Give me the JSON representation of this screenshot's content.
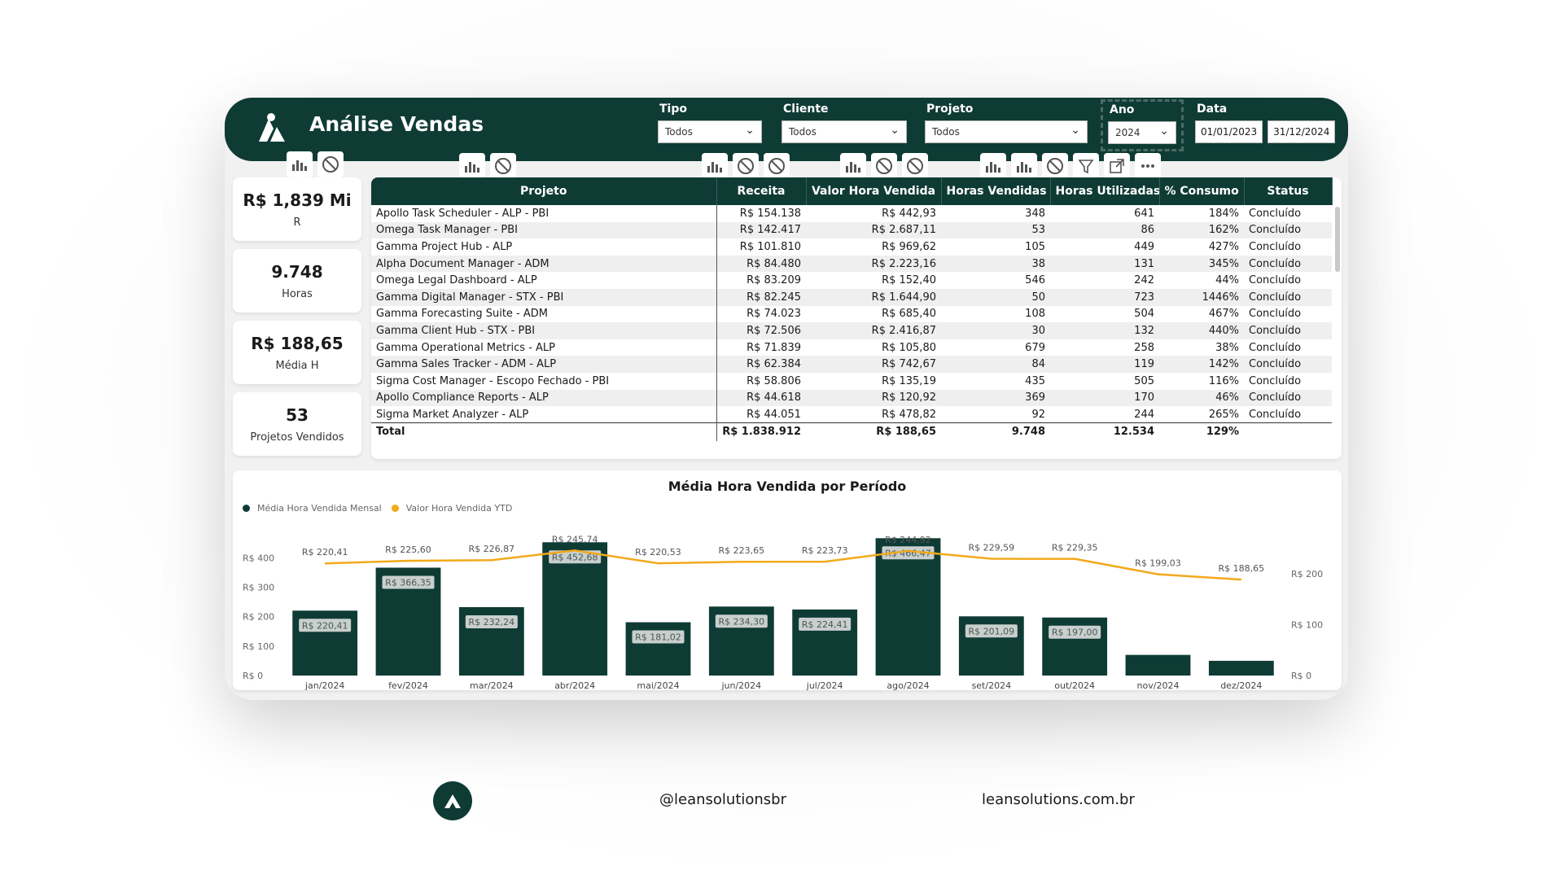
{
  "header": {
    "title": "Análise Vendas",
    "filters": [
      {
        "label": "Tipo",
        "value": "Todos"
      },
      {
        "label": "Cliente",
        "value": "Todos"
      },
      {
        "label": "Projeto",
        "value": "Todos"
      }
    ],
    "ano": {
      "label": "Ano",
      "value": "2024"
    },
    "data": {
      "label": "Data",
      "start": "01/01/2023",
      "end": "31/12/2024"
    }
  },
  "kpis": [
    {
      "value": "R$ 1,839 Mi",
      "label": "R"
    },
    {
      "value": "9.748",
      "label": "Horas"
    },
    {
      "value": "R$ 188,65",
      "label": "Média H"
    },
    {
      "value": "53",
      "label": "Projetos Vendidos"
    }
  ],
  "table": {
    "headers": [
      "Projeto",
      "Receita",
      "Valor Hora Vendida",
      "Horas Vendidas",
      "Horas Utilizadas",
      "% Consumo",
      "Status"
    ],
    "rows": [
      [
        "Apollo Task Scheduler - ALP - PBI",
        "R$ 154.138",
        "R$ 442,93",
        "348",
        "641",
        "184%",
        "Concluído"
      ],
      [
        "Omega Task Manager - PBI",
        "R$ 142.417",
        "R$ 2.687,11",
        "53",
        "86",
        "162%",
        "Concluído"
      ],
      [
        "Gamma Project Hub - ALP",
        "R$ 101.810",
        "R$ 969,62",
        "105",
        "449",
        "427%",
        "Concluído"
      ],
      [
        "Alpha Document Manager - ADM",
        "R$ 84.480",
        "R$ 2.223,16",
        "38",
        "131",
        "345%",
        "Concluído"
      ],
      [
        "Omega Legal Dashboard - ALP",
        "R$ 83.209",
        "R$ 152,40",
        "546",
        "242",
        "44%",
        "Concluído"
      ],
      [
        "Gamma Digital Manager - STX - PBI",
        "R$ 82.245",
        "R$ 1.644,90",
        "50",
        "723",
        "1446%",
        "Concluído"
      ],
      [
        "Gamma Forecasting Suite - ADM",
        "R$ 74.023",
        "R$ 685,40",
        "108",
        "504",
        "467%",
        "Concluído"
      ],
      [
        "Gamma Client Hub - STX - PBI",
        "R$ 72.506",
        "R$ 2.416,87",
        "30",
        "132",
        "440%",
        "Concluído"
      ],
      [
        "Gamma Operational Metrics - ALP",
        "R$ 71.839",
        "R$ 105,80",
        "679",
        "258",
        "38%",
        "Concluído"
      ],
      [
        "Gamma Sales Tracker - ADM - ALP",
        "R$ 62.384",
        "R$ 742,67",
        "84",
        "119",
        "142%",
        "Concluído"
      ],
      [
        "Sigma Cost Manager - Escopo Fechado - PBI",
        "R$ 58.806",
        "R$ 135,19",
        "435",
        "505",
        "116%",
        "Concluído"
      ],
      [
        "Apollo Compliance Reports - ALP",
        "R$ 44.618",
        "R$ 120,92",
        "369",
        "170",
        "46%",
        "Concluído"
      ],
      [
        "Sigma Market Analyzer - ALP",
        "R$ 44.051",
        "R$ 478,82",
        "92",
        "244",
        "265%",
        "Concluído"
      ]
    ],
    "total": [
      "Total",
      "R$ 1.838.912",
      "R$ 188,65",
      "9.748",
      "12.534",
      "129%",
      ""
    ]
  },
  "chart_data": {
    "type": "bar",
    "title": "Média Hora Vendida por Período",
    "categories": [
      "jan/2024",
      "fev/2024",
      "mar/2024",
      "abr/2024",
      "mai/2024",
      "jun/2024",
      "jul/2024",
      "ago/2024",
      "set/2024",
      "out/2024",
      "nov/2024",
      "dez/2024"
    ],
    "series": [
      {
        "name": "Média Hora Vendida Mensal",
        "type": "bar",
        "values": [
          220.41,
          366.35,
          232.24,
          452.68,
          181.02,
          234.3,
          224.41,
          466.47,
          201.09,
          197.0,
          70,
          50
        ],
        "labels": [
          "R$ 220,41",
          "R$ 366,35",
          "R$ 232,24",
          "R$ 452,68",
          "R$ 181,02",
          "R$ 234,30",
          "R$ 224,41",
          "R$ 466,47",
          "R$ 201,09",
          "R$ 197,00",
          "",
          ""
        ]
      },
      {
        "name": "Valor Hora Vendida YTD",
        "type": "line",
        "values": [
          220.41,
          225.6,
          226.87,
          245.74,
          220.53,
          223.65,
          223.73,
          244.92,
          229.59,
          229.35,
          199.03,
          188.65
        ],
        "labels": [
          "R$ 220,41",
          "R$ 225,60",
          "R$ 226,87",
          "R$ 245,74",
          "R$ 220,53",
          "R$ 223,65",
          "R$ 223,73",
          "R$ 244,92",
          "R$ 229,59",
          "R$ 229,35",
          "R$ 199,03",
          "R$ 188,65"
        ]
      }
    ],
    "y_left": {
      "ticks": [
        "R$ 0",
        "R$ 100",
        "R$ 200",
        "R$ 300",
        "R$ 400"
      ],
      "range": [
        0,
        470
      ]
    },
    "y_right": {
      "ticks": [
        "R$ 0",
        "R$ 100",
        "R$ 200"
      ],
      "range": [
        0,
        240
      ]
    },
    "colors": {
      "bar": "#0f3b35",
      "line": "#f2a91b",
      "barlabel_bg": "#c8cfcd"
    }
  },
  "footer": {
    "handle": "@leansolutionsbr",
    "site": "leansolutions.com.br"
  }
}
